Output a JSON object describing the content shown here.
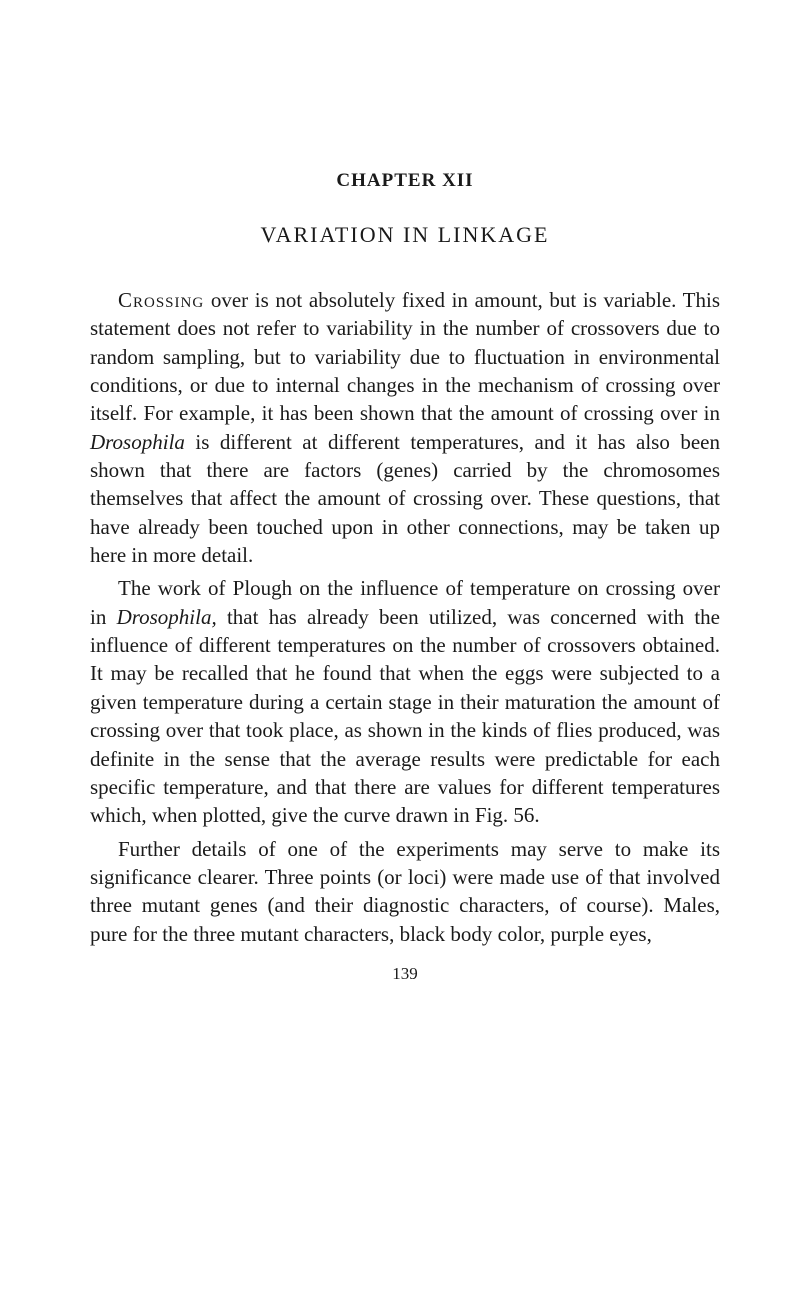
{
  "chapter": {
    "heading": "CHAPTER XII",
    "title": "VARIATION IN LINKAGE"
  },
  "paragraphs": {
    "p1_lead": "Crossing",
    "p1_rest": " over is not absolutely fixed in amount, but is variable. This statement does not refer to variability in the number of crossovers due to random sampling, but to variability due to fluctuation in environmental conditions, or due to internal changes in the mechanism of crossing over itself. For example, it has been shown that the amount of crossing over in ",
    "p1_italic1": "Drosophila",
    "p1_cont1": " is different at different temperatures, and it has also been shown that there are factors (genes) carried by the chromosomes themselves that affect the amount of crossing over. These questions, that have already been touched upon in other connections, may be taken up here in more detail.",
    "p2_start": "The work of Plough on the influence of temperature on crossing over in ",
    "p2_italic1": "Drosophila,",
    "p2_cont1": " that has already been utilized, was concerned with the influence of different temperatures on the number of crossovers obtained. It may be recalled that he found that when the eggs were subjected to a given temperature during a certain stage in their maturation the amount of crossing over that took place, as shown in the kinds of flies produced, was definite in the sense that the average results were predictable for each specific temperature, and that there are values for different temperatures which, when plotted, give the curve drawn in Fig. 56.",
    "p3": "Further details of one of the experiments may serve to make its significance clearer. Three points (or loci) were made use of that involved three mutant genes (and their diagnostic characters, of course). Males, pure for the three mutant characters, black body color, purple eyes,"
  },
  "page_number": "139",
  "styling": {
    "background_color": "#ffffff",
    "text_color": "#1a1a1a",
    "body_fontsize": 21,
    "heading_fontsize": 19,
    "title_fontsize": 22,
    "pagenum_fontsize": 17,
    "line_height": 1.35,
    "font_family": "Georgia, Times New Roman, serif"
  }
}
